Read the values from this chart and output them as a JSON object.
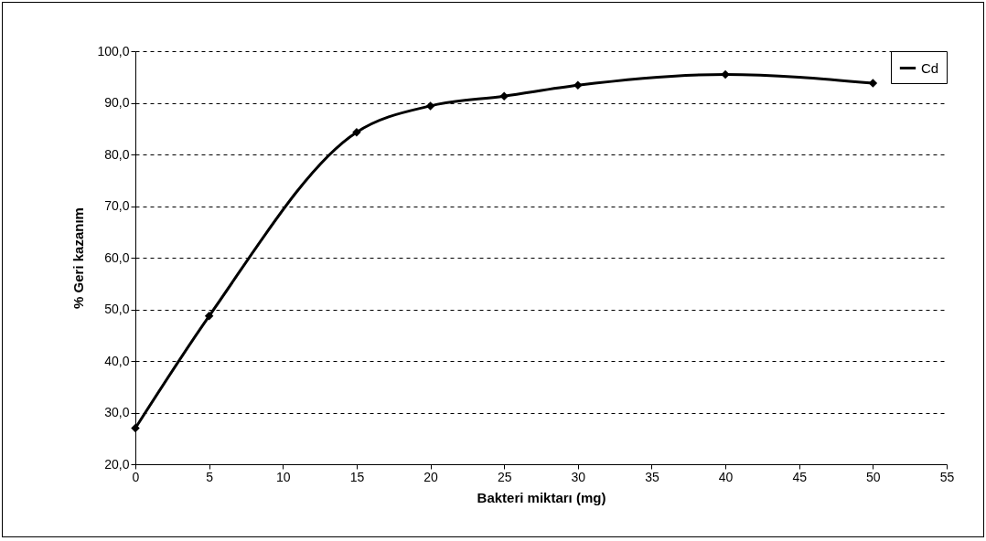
{
  "chart_data": {
    "type": "line",
    "xlabel": "Bakteri miktarı (mg)",
    "ylabel": "% Geri kazanım",
    "x": [
      0,
      5,
      15,
      20,
      25,
      30,
      40,
      50
    ],
    "series": [
      {
        "name": "Cd",
        "color": "#000000",
        "values": [
          27.0,
          48.7,
          84.3,
          89.4,
          91.3,
          93.4,
          95.5,
          93.8
        ]
      }
    ],
    "xlim": [
      0,
      55
    ],
    "xticks": [
      0,
      5,
      10,
      15,
      20,
      25,
      30,
      35,
      40,
      45,
      50,
      55
    ],
    "ylim": [
      20,
      100
    ],
    "yticks": [
      {
        "value": 20,
        "label": "20,0"
      },
      {
        "value": 30,
        "label": "30,0"
      },
      {
        "value": 40,
        "label": "40,0"
      },
      {
        "value": 50,
        "label": "50,0"
      },
      {
        "value": 60,
        "label": "60,0"
      },
      {
        "value": 70,
        "label": "70,0"
      },
      {
        "value": 80,
        "label": "80,0"
      },
      {
        "value": 90,
        "label": "90,0"
      },
      {
        "value": 100,
        "label": "100,0"
      }
    ],
    "grid": "y",
    "legend": "right",
    "marker": "diamond",
    "line_style": "solid"
  }
}
